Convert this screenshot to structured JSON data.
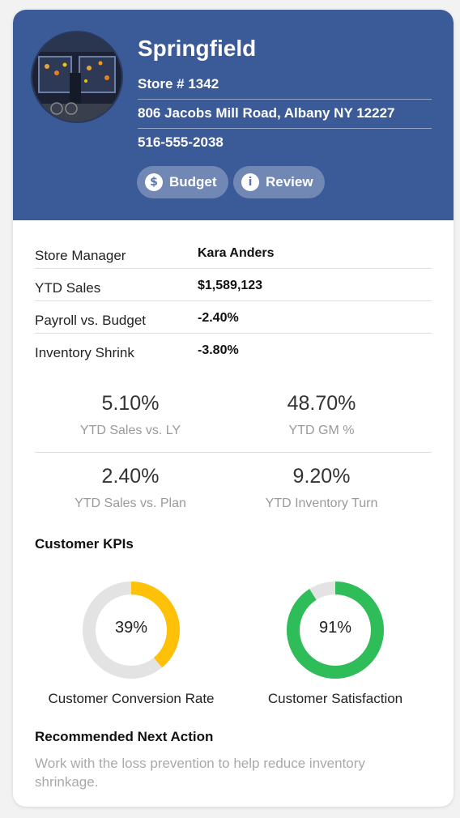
{
  "store": {
    "name": "Springfield",
    "store_number": "Store # 1342",
    "address": "806 Jacobs Mill Road, Albany NY 12227",
    "phone": "516-555-2038"
  },
  "actions": {
    "budget_label": "Budget",
    "budget_icon": "dollar-icon",
    "review_label": "Review",
    "review_icon": "info-icon"
  },
  "details": [
    {
      "label": "Store Manager",
      "value": "Kara Anders"
    },
    {
      "label": "YTD Sales",
      "value": "$1,589,123"
    },
    {
      "label": "Payroll vs. Budget",
      "value": "-2.40%"
    },
    {
      "label": "Inventory Shrink",
      "value": "-3.80%"
    }
  ],
  "metrics": [
    {
      "value": "5.10%",
      "label": "YTD Sales vs. LY"
    },
    {
      "value": "48.70%",
      "label": "YTD GM %"
    },
    {
      "value": "2.40%",
      "label": "YTD Sales vs. Plan"
    },
    {
      "value": "9.20%",
      "label": "YTD Inventory Turn"
    }
  ],
  "customer_kpis": {
    "title": "Customer KPIs",
    "items": [
      {
        "label": "Customer Conversion Rate",
        "percent_text": "39%",
        "fraction": 0.39,
        "color": "#ffc107"
      },
      {
        "label": "Customer Satisfaction",
        "percent_text": "91%",
        "fraction": 0.91,
        "color": "#2ebd59"
      }
    ],
    "track_color": "#e3e3e3"
  },
  "next_action": {
    "title": "Recommended Next Action",
    "text": "Work with the loss prevention to help reduce inventory shrinkage."
  },
  "colors": {
    "header_bg": "#3b5a98"
  }
}
